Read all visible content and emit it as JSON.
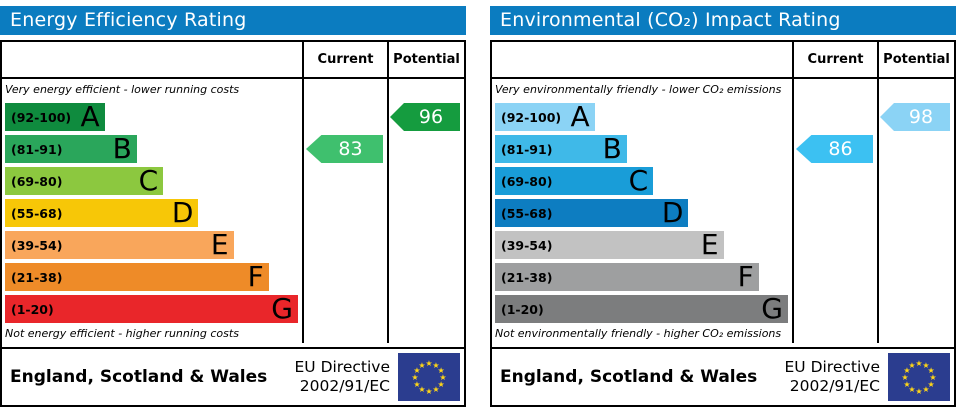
{
  "accent": {
    "header_blue": "#0b7cc0",
    "border_black": "#000000",
    "eu_flag_blue": "#2b3d8f",
    "eu_star_yellow": "#ffd617"
  },
  "panels": [
    {
      "title": "Energy Efficiency Rating",
      "col_current": "Current",
      "col_potential": "Potential",
      "top_note": "Very energy efficient - lower running costs",
      "bottom_note": "Not energy efficient - higher running costs",
      "bands": [
        {
          "range": "(92-100)",
          "letter": "A",
          "color": "#0f8b3e",
          "width_pct": 34
        },
        {
          "range": "(81-91)",
          "letter": "B",
          "color": "#2aa65b",
          "width_pct": 45
        },
        {
          "range": "(69-80)",
          "letter": "C",
          "color": "#8cc83f",
          "width_pct": 54
        },
        {
          "range": "(55-68)",
          "letter": "D",
          "color": "#f7c707",
          "width_pct": 66
        },
        {
          "range": "(39-54)",
          "letter": "E",
          "color": "#f9a65b",
          "width_pct": 78
        },
        {
          "range": "(21-38)",
          "letter": "F",
          "color": "#ee8b28",
          "width_pct": 90
        },
        {
          "range": "(1-20)",
          "letter": "G",
          "color": "#e9262a",
          "width_pct": 100
        }
      ],
      "current": {
        "value": "83",
        "band_index": 1,
        "color": "#3fc06e"
      },
      "potential": {
        "value": "96",
        "band_index": 0,
        "color": "#159c3f"
      },
      "footer_region": "England, Scotland & Wales",
      "footer_directive_line1": "EU Directive",
      "footer_directive_line2": "2002/91/EC"
    },
    {
      "title": "Environmental (CO₂) Impact Rating",
      "col_current": "Current",
      "col_potential": "Potential",
      "top_note": "Very environmentally friendly - lower CO₂ emissions",
      "bottom_note": "Not environmentally friendly - higher CO₂ emissions",
      "bands": [
        {
          "range": "(92-100)",
          "letter": "A",
          "color": "#8bd3f5",
          "width_pct": 34
        },
        {
          "range": "(81-91)",
          "letter": "B",
          "color": "#3fb9e8",
          "width_pct": 45
        },
        {
          "range": "(69-80)",
          "letter": "C",
          "color": "#199dd8",
          "width_pct": 54
        },
        {
          "range": "(55-68)",
          "letter": "D",
          "color": "#0d7dc1",
          "width_pct": 66
        },
        {
          "range": "(39-54)",
          "letter": "E",
          "color": "#c2c2c2",
          "width_pct": 78
        },
        {
          "range": "(21-38)",
          "letter": "F",
          "color": "#9e9fa0",
          "width_pct": 90
        },
        {
          "range": "(1-20)",
          "letter": "G",
          "color": "#7c7d7e",
          "width_pct": 100
        }
      ],
      "current": {
        "value": "86",
        "band_index": 1,
        "color": "#3cc1f2"
      },
      "potential": {
        "value": "98",
        "band_index": 0,
        "color": "#8bd3f5"
      },
      "footer_region": "England, Scotland & Wales",
      "footer_directive_line1": "EU Directive",
      "footer_directive_line2": "2002/91/EC"
    }
  ],
  "chart_data": [
    {
      "type": "bar",
      "title": "Energy Efficiency Rating",
      "categories": [
        "A (92-100)",
        "B (81-91)",
        "C (69-80)",
        "D (55-68)",
        "E (39-54)",
        "F (21-38)",
        "G (1-20)"
      ],
      "bar_relative_widths_pct": [
        34,
        45,
        54,
        66,
        78,
        90,
        100
      ],
      "series": [
        {
          "name": "Current",
          "values": [
            83
          ],
          "band": "B"
        },
        {
          "name": "Potential",
          "values": [
            96
          ],
          "band": "A"
        }
      ],
      "annotations": [
        "Very energy efficient - lower running costs",
        "Not energy efficient - higher running costs"
      ],
      "footer": "England, Scotland & Wales — EU Directive 2002/91/EC",
      "value_range": [
        1,
        100
      ]
    },
    {
      "type": "bar",
      "title": "Environmental (CO₂) Impact Rating",
      "categories": [
        "A (92-100)",
        "B (81-91)",
        "C (69-80)",
        "D (55-68)",
        "E (39-54)",
        "F (21-38)",
        "G (1-20)"
      ],
      "bar_relative_widths_pct": [
        34,
        45,
        54,
        66,
        78,
        90,
        100
      ],
      "series": [
        {
          "name": "Current",
          "values": [
            86
          ],
          "band": "B"
        },
        {
          "name": "Potential",
          "values": [
            98
          ],
          "band": "A"
        }
      ],
      "annotations": [
        "Very environmentally friendly - lower CO₂ emissions",
        "Not environmentally friendly - higher CO₂ emissions"
      ],
      "footer": "England, Scotland & Wales — EU Directive 2002/91/EC",
      "value_range": [
        1,
        100
      ]
    }
  ]
}
